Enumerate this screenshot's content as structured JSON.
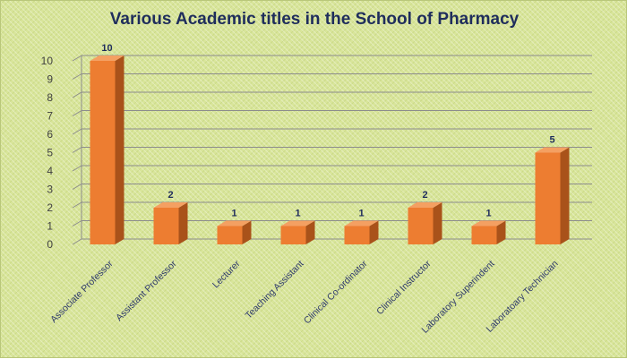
{
  "chart_data": {
    "type": "bar",
    "title": "Various Academic titles in the School of Pharmacy",
    "categories": [
      "Associate Professor",
      "Assistant Professor",
      "Lecturer",
      "Teaching Assistant",
      "Clinical Co-ordinator",
      "Clinical Instructor",
      "Laboratory Superindent",
      "Laboratoary Technician"
    ],
    "values": [
      10,
      2,
      1,
      1,
      1,
      2,
      1,
      5
    ],
    "ylim": [
      0,
      10
    ],
    "yticks": [
      0,
      1,
      2,
      3,
      4,
      5,
      6,
      7,
      8,
      9,
      10
    ],
    "xlabel": "",
    "ylabel": "",
    "grid": true,
    "bar_style": "3d",
    "colors": {
      "bar_front": "#ed7d31",
      "bar_side": "#a9521a",
      "bar_top": "#f4a062",
      "grid": "#8c8c8c",
      "title": "#1f2d5c",
      "background": "#d8e59a"
    }
  }
}
